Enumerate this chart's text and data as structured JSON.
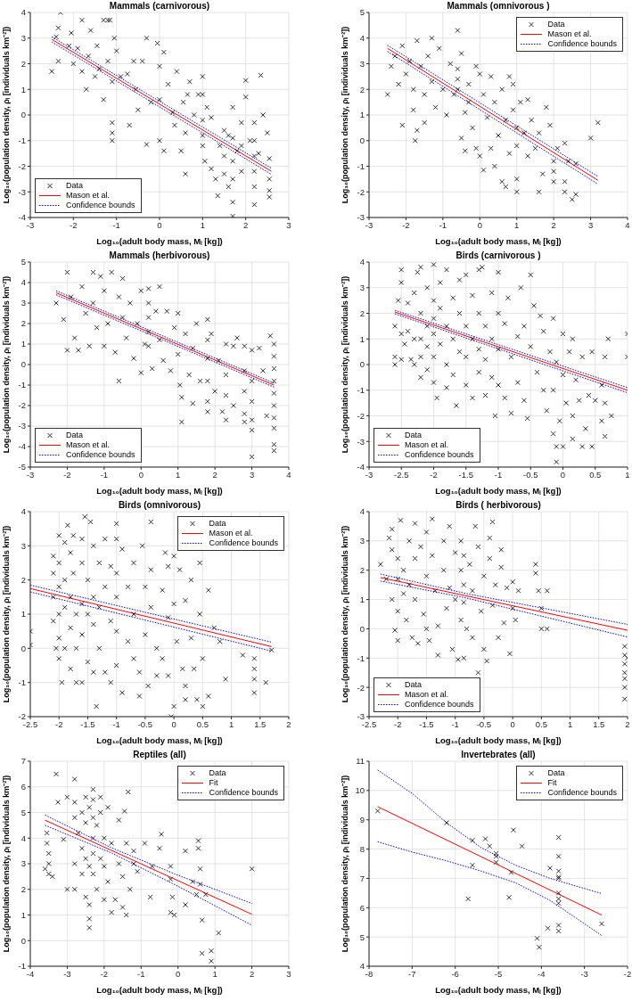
{
  "chart_data": [
    {
      "type": "scatter",
      "title": "Mammals (carnivorous)",
      "xlabel": "Log₁₀(adult body mass, Mᵢ [kg])",
      "ylabel": "Log₁₀(population density, ρᵢ [individuals km⁻²])",
      "xlim": [
        -3,
        3
      ],
      "xticks": [
        -3,
        -2,
        -1,
        0,
        1,
        2,
        3
      ],
      "ylim": [
        -4,
        4
      ],
      "yticks": [
        -4,
        -3,
        -2,
        -1,
        0,
        1,
        2,
        3,
        4
      ],
      "grid": true,
      "legend": "bottom left",
      "series": [
        {
          "name": "Data",
          "type": "scatter",
          "marker": "cross",
          "color": "#000000",
          "x": [
            -2.5,
            -2.4,
            -2.35,
            -2.35,
            -2.3,
            -2.1,
            -2.05,
            -2.0,
            -1.9,
            -1.8,
            -1.8,
            -1.7,
            -1.65,
            -1.6,
            -1.5,
            -1.45,
            -1.4,
            -1.3,
            -1.3,
            -1.2,
            -1.2,
            -1.15,
            -1.1,
            -1.1,
            -1.1,
            -1.1,
            -1.05,
            -1.0,
            -0.9,
            -0.75,
            -0.7,
            -0.6,
            -0.55,
            -0.5,
            -0.4,
            -0.3,
            -0.3,
            -0.2,
            -0.05,
            0,
            0,
            0,
            0.1,
            0.1,
            0.2,
            0.3,
            0.35,
            0.4,
            0.5,
            0.55,
            0.6,
            0.6,
            0.65,
            0.7,
            0.8,
            0.9,
            1.0,
            1.0,
            1.0,
            1.0,
            1.0,
            1.05,
            1.1,
            1.2,
            1.2,
            1.3,
            1.35,
            1.4,
            1.5,
            1.5,
            1.5,
            1.6,
            1.6,
            1.7,
            1.7,
            1.7,
            1.7,
            1.7,
            1.7,
            1.8,
            1.9,
            1.9,
            1.9,
            2.0,
            2.0,
            2.1,
            2.2,
            2.2,
            2.2,
            2.2,
            2.2,
            2.2,
            2.3,
            2.35,
            2.4,
            2.5,
            2.55,
            2.55,
            2.55,
            2.55
          ],
          "values": [
            1.7,
            3.05,
            3.4,
            2.1,
            4.0,
            2.7,
            3.2,
            2.0,
            2.6,
            3.7,
            1.7,
            1.0,
            2.3,
            3.3,
            1.5,
            2.7,
            1.8,
            3.7,
            0.6,
            3.7,
            2.1,
            3.7,
            1.3,
            -0.3,
            -0.7,
            -1.0,
            3.0,
            2.5,
            1.5,
            1.6,
            -0.4,
            2.1,
            1.0,
            0.2,
            2.1,
            3.0,
            -1.15,
            0.5,
            2.8,
            1.9,
            0.6,
            -1.0,
            2.45,
            -1.4,
            1.2,
            0.1,
            -0.4,
            1.7,
            -1.4,
            0.5,
            -2.3,
            -0.7,
            0.8,
            1.3,
            0.0,
            0.8,
            1.5,
            0.8,
            -0.2,
            -0.8,
            -1.2,
            -1.8,
            0.3,
            -0.1,
            -2.1,
            -2.5,
            -3.15,
            -1.2,
            -0.6,
            -1.6,
            -2.3,
            -0.8,
            -2.8,
            0.3,
            -0.9,
            -1.8,
            -2.5,
            -3.4,
            -3.95,
            -1.4,
            -0.3,
            -1.2,
            -2.2,
            0.7,
            1.35,
            -1.0,
            -0.3,
            -1.0,
            -1.6,
            -2.2,
            -2.8,
            -3.5,
            -1.5,
            1.55,
            0.0,
            -0.7,
            -1.7,
            -2.5,
            -2.95,
            -3.2
          ]
        },
        {
          "name": "Mason et al.",
          "type": "line",
          "line_style": "solid",
          "color": "#ff0000",
          "x": [
            -2.5,
            2.6
          ],
          "values": [
            2.95,
            -2.2
          ]
        },
        {
          "name": "Confidence bounds",
          "type": "line",
          "line_style": "dotted",
          "color": "#0000ff",
          "x": [
            -2.5,
            2.6
          ],
          "values": [
            3.05,
            -2.08
          ]
        },
        {
          "type": "line",
          "line_style": "dotted",
          "color": "#0000ff",
          "x": [
            -2.5,
            2.6
          ],
          "values": [
            2.85,
            -2.32
          ]
        }
      ]
    },
    {
      "type": "scatter",
      "title": "Mammals (omnivorous )",
      "xlabel": "Log₁₀(adult body mass, Mᵢ [kg])",
      "ylabel": "Log₁₀(population density, ρᵢ [individuals km⁻²])",
      "xlim": [
        -3,
        4
      ],
      "xticks": [
        -3,
        -2,
        -1,
        0,
        1,
        2,
        3,
        4
      ],
      "ylim": [
        -3,
        5
      ],
      "yticks": [
        -3,
        -2,
        -1,
        0,
        1,
        2,
        3,
        4,
        5
      ],
      "grid": true,
      "legend": "top right",
      "series": [
        {
          "name": "Data",
          "type": "scatter",
          "marker": "cross",
          "color": "#000000",
          "x": [
            -2.5,
            -2.4,
            -2.3,
            -2.2,
            -2.1,
            -2.1,
            -2.0,
            -1.9,
            -1.8,
            -1.8,
            -1.75,
            -1.7,
            -1.7,
            -1.6,
            -1.5,
            -1.5,
            -1.4,
            -1.3,
            -1.3,
            -1.2,
            -1.1,
            -1.0,
            -0.9,
            -0.8,
            -0.7,
            -0.6,
            -0.6,
            -0.6,
            -0.6,
            -0.5,
            -0.5,
            -0.4,
            -0.4,
            -0.3,
            -0.3,
            -0.2,
            -0.1,
            -0.1,
            0,
            0,
            0.1,
            0.1,
            0.2,
            0.3,
            0.3,
            0.4,
            0.4,
            0.5,
            0.6,
            0.6,
            0.7,
            0.7,
            0.8,
            0.8,
            0.9,
            0.9,
            1.0,
            1.0,
            1.0,
            1.0,
            1.1,
            1.2,
            1.3,
            1.3,
            1.4,
            1.5,
            1.6,
            1.6,
            1.7,
            1.8,
            1.9,
            2.0,
            2.0,
            2.0,
            2.1,
            2.3,
            2.3,
            2.3,
            2.4,
            2.5,
            2.6,
            2.6,
            3.0,
            3.2
          ],
          "values": [
            1.8,
            2.9,
            3.3,
            2.2,
            3.7,
            0.6,
            2.6,
            3.1,
            2.0,
            1.2,
            0.0,
            3.9,
            0.4,
            2.9,
            0.7,
            1.8,
            3.3,
            4.0,
            2.3,
            1.3,
            3.6,
            2.0,
            1.0,
            3.0,
            1.8,
            4.3,
            2.8,
            2.4,
            2.0,
            3.4,
            0.1,
            1.1,
            -0.4,
            2.2,
            1.5,
            0.5,
            2.9,
            -0.3,
            2.6,
            -0.6,
            1.8,
            -1.15,
            0.9,
            2.5,
            -0.3,
            1.5,
            -1.0,
            0.2,
            2.0,
            -1.6,
            0.8,
            -1.8,
            2.5,
            -0.5,
            1.2,
            2.2,
            -1.5,
            -2.0,
            -0.2,
            0.5,
            1.5,
            0.3,
            1.6,
            -0.6,
            0.8,
            -0.3,
            0.3,
            -2.0,
            -1.3,
            1.3,
            0.6,
            -0.8,
            -1.2,
            -1.6,
            -0.3,
            -0.1,
            -1.6,
            -2.0,
            -0.8,
            -2.3,
            -0.9,
            -2.1,
            0.1,
            0.7
          ]
        },
        {
          "name": "Mason et al.",
          "type": "line",
          "line_style": "solid",
          "color": "#ff0000",
          "x": [
            -2.5,
            3.2
          ],
          "values": [
            3.6,
            -1.55
          ]
        },
        {
          "name": "Confidence bounds",
          "type": "line",
          "line_style": "dotted",
          "color": "#0000ff",
          "x": [
            -2.5,
            3.2
          ],
          "values": [
            3.72,
            -1.4
          ]
        },
        {
          "type": "line",
          "line_style": "dotted",
          "color": "#0000ff",
          "x": [
            -2.5,
            3.2
          ],
          "values": [
            3.48,
            -1.7
          ]
        }
      ]
    },
    {
      "type": "scatter",
      "title": "Mammals (herbivorous)",
      "xlabel": "Log₁₀(adult body mass, Mᵢ [kg])",
      "ylabel": "Log₁₀(population density, ρᵢ [individuals km⁻²])",
      "xlim": [
        -3,
        4
      ],
      "xticks": [
        -3,
        -2,
        -1,
        0,
        1,
        2,
        3,
        4
      ],
      "ylim": [
        -5,
        5
      ],
      "yticks": [
        -5,
        -4,
        -3,
        -2,
        -1,
        0,
        1,
        2,
        3,
        4,
        5
      ],
      "grid": true,
      "legend": "bottom left",
      "series": [
        {
          "name": "Data",
          "type": "scatter",
          "marker": "cross",
          "color": "#000000",
          "x": [
            -2.3,
            -2.1,
            -2.0,
            -2.0,
            -1.9,
            -1.8,
            -1.7,
            -1.6,
            -1.5,
            -1.4,
            -1.3,
            -1.3,
            -1.2,
            -1.1,
            -1.0,
            -1.0,
            -0.9,
            -0.8,
            -0.7,
            -0.6,
            -0.6,
            -0.5,
            -0.5,
            -0.4,
            -0.3,
            -0.2,
            -0.1,
            0,
            0,
            0.1,
            0.2,
            0.2,
            0.2,
            0.2,
            0.2,
            0.3,
            0.4,
            0.5,
            0.5,
            0.6,
            0.7,
            0.8,
            0.9,
            1.0,
            1.0,
            1.05,
            1.1,
            1.1,
            1.2,
            1.3,
            1.4,
            1.4,
            1.5,
            1.6,
            1.8,
            1.8,
            1.8,
            1.8,
            1.8,
            1.8,
            1.9,
            2.0,
            2.1,
            2.2,
            2.3,
            2.3,
            2.3,
            2.3,
            2.5,
            2.5,
            2.6,
            2.8,
            2.8,
            2.8,
            2.8,
            2.8,
            3.0,
            3.0,
            3.0,
            3.0,
            3.0,
            3.0,
            3.2,
            3.3,
            3.4,
            3.5,
            3.6,
            3.6,
            3.6,
            3.6,
            3.6,
            3.6,
            3.6,
            3.6,
            3.6,
            3.6
          ],
          "values": [
            3.0,
            2.2,
            4.5,
            0.7,
            3.3,
            1.3,
            0.7,
            3.8,
            2.5,
            0.9,
            4.5,
            3.0,
            1.8,
            4.3,
            3.6,
            0.9,
            2.0,
            4.5,
            0.6,
            3.3,
            -0.8,
            4.2,
            2.3,
            1.3,
            3.0,
            0.3,
            2.0,
            3.6,
            -0.4,
            1.0,
            3.7,
            3.0,
            2.3,
            1.6,
            0.9,
            -0.2,
            2.6,
            3.8,
            1.2,
            0.2,
            2.6,
            -0.3,
            1.8,
            2.5,
            0.5,
            -1.0,
            -2.8,
            -1.6,
            1.5,
            -0.5,
            0.8,
            -1.9,
            2.0,
            -0.8,
            2.2,
            1.2,
            0.3,
            -0.8,
            -1.8,
            -2.3,
            1.5,
            -1.3,
            0.2,
            -2.3,
            1.0,
            -0.5,
            -1.5,
            -2.7,
            0.9,
            -2.0,
            1.3,
            0.9,
            -0.3,
            -1.3,
            -2.4,
            -2.8,
            0.7,
            -0.8,
            -1.8,
            -2.7,
            -3.2,
            -4.5,
            0.8,
            -0.3,
            -2.5,
            1.4,
            1.0,
            0.4,
            -0.2,
            -0.8,
            -1.4,
            -2.0,
            -2.6,
            -3.1,
            -3.9,
            -4.2
          ]
        },
        {
          "name": "Mason et al.",
          "type": "line",
          "line_style": "solid",
          "color": "#ff0000",
          "x": [
            -2.3,
            3.6
          ],
          "values": [
            3.5,
            -1.0
          ]
        },
        {
          "name": "Confidence bounds",
          "type": "line",
          "line_style": "dotted",
          "color": "#0000ff",
          "x": [
            -2.3,
            3.6
          ],
          "values": [
            3.6,
            -0.9
          ]
        },
        {
          "type": "line",
          "line_style": "dotted",
          "color": "#0000ff",
          "x": [
            -2.3,
            3.6
          ],
          "values": [
            3.4,
            -1.1
          ]
        }
      ]
    },
    {
      "type": "scatter",
      "title": "Birds (carnivorous )",
      "xlabel": "Log₁₀(adult body mass, Mᵢ [kg])",
      "ylabel": "Log₁₀(population density, ρᵢ [individuals km⁻²])",
      "xlim": [
        -3,
        1
      ],
      "xticks": [
        -3,
        -2.5,
        -2,
        -1.5,
        -1,
        -0.5,
        0,
        0.5,
        1
      ],
      "ylim": [
        -4,
        4
      ],
      "yticks": [
        -4,
        -3,
        -2,
        -1,
        0,
        1,
        2,
        3,
        4
      ],
      "grid": true,
      "legend": "bottom left",
      "series": [
        {
          "name": "Data",
          "type": "scatter",
          "marker": "cross",
          "color": "#000000",
          "x": [
            -2.6,
            -2.6,
            -2.6,
            -2.55,
            -2.5,
            -2.5,
            -2.5,
            -2.5,
            -2.45,
            -2.4,
            -2.4,
            -2.35,
            -2.3,
            -2.3,
            -2.3,
            -2.25,
            -2.2,
            -2.2,
            -2.2,
            -2.2,
            -2.2,
            -2.1,
            -2.1,
            -2.1,
            -2.1,
            -2.0,
            -2.0,
            -2.0,
            -2.0,
            -2.0,
            -2.0,
            -1.95,
            -1.9,
            -1.9,
            -1.9,
            -1.8,
            -1.8,
            -1.8,
            -1.8,
            -1.7,
            -1.7,
            -1.7,
            -1.65,
            -1.6,
            -1.6,
            -1.6,
            -1.5,
            -1.5,
            -1.5,
            -1.5,
            -1.4,
            -1.4,
            -1.4,
            -1.3,
            -1.3,
            -1.3,
            -1.3,
            -1.25,
            -1.2,
            -1.2,
            -1.2,
            -1.1,
            -1.1,
            -1.1,
            -1.05,
            -1.0,
            -1.0,
            -1.0,
            -1.0,
            -0.9,
            -0.9,
            -0.85,
            -0.8,
            -0.8,
            -0.7,
            -0.7,
            -0.65,
            -0.6,
            -0.6,
            -0.55,
            -0.5,
            -0.5,
            -0.45,
            -0.4,
            -0.35,
            -0.3,
            -0.3,
            -0.25,
            -0.2,
            -0.15,
            -0.15,
            -0.15,
            -0.1,
            -0.1,
            -0.1,
            -0.05,
            0,
            0,
            0,
            0.05,
            0.1,
            0.15,
            0.15,
            0.15,
            0.2,
            0.25,
            0.3,
            0.3,
            0.35,
            0.4,
            0.45,
            0.45,
            0.5,
            0.6,
            0.6,
            0.65,
            0.65,
            0.65,
            0.7,
            0.75,
            1.0,
            1.0
          ],
          "values": [
            1.5,
            0.3,
            0.0,
            2.5,
            3.7,
            3.2,
            1.2,
            0.2,
            0.8,
            2.4,
            1.3,
            0.2,
            0.0,
            1.0,
            2.8,
            3.6,
            3.8,
            2.0,
            1.0,
            0.3,
            -0.5,
            3.0,
            1.5,
            0.7,
            -0.2,
            3.9,
            2.5,
            1.8,
            1.2,
            0.3,
            -0.7,
            -1.3,
            3.2,
            2.2,
            0.8,
            3.7,
            1.5,
            0.0,
            -0.9,
            2.6,
            1.0,
            -0.4,
            -1.6,
            3.3,
            2.0,
            0.5,
            3.5,
            1.5,
            0.3,
            -0.8,
            2.7,
            1.0,
            -1.3,
            3.7,
            2.0,
            0.6,
            -0.3,
            3.8,
            1.5,
            0.2,
            -1.2,
            2.8,
            1.0,
            -0.5,
            -2.0,
            3.6,
            2.0,
            0.6,
            -0.8,
            1.6,
            -1.3,
            2.6,
            0.3,
            -1.9,
            1.1,
            -0.7,
            3.0,
            1.5,
            -1.4,
            -2.1,
            3.5,
            0.7,
            2.3,
            -0.3,
            1.9,
            1.3,
            -1.0,
            -1.8,
            0.5,
            1.8,
            -1.0,
            -2.7,
            -3.2,
            -3.8,
            0.1,
            -2.2,
            1.2,
            -0.4,
            -3.2,
            -1.5,
            0.5,
            -2.0,
            -2.9,
            1.0,
            -0.6,
            -1.4,
            0.3,
            -3.2,
            -2.5,
            -1.2,
            -3.2,
            0.5,
            -1.4,
            -0.8,
            -2.2,
            -1.5,
            0.3,
            -2.8,
            1.0,
            -2.0,
            1.2,
            0.3
          ]
        },
        {
          "name": "Mason et al.",
          "type": "line",
          "line_style": "solid",
          "color": "#ff0000",
          "x": [
            -2.6,
            1.0
          ],
          "values": [
            2.05,
            -1.0
          ]
        },
        {
          "name": "Confidence bounds",
          "type": "line",
          "line_style": "dotted",
          "color": "#0000ff",
          "x": [
            -2.6,
            1.0
          ],
          "values": [
            2.12,
            -0.9
          ]
        },
        {
          "type": "line",
          "line_style": "dotted",
          "color": "#0000ff",
          "x": [
            -2.6,
            1.0
          ],
          "values": [
            1.98,
            -1.1
          ]
        }
      ]
    },
    {
      "type": "scatter",
      "title": "Birds (omnivorous)",
      "xlabel": "Log₁₀(adult body mass, Mᵢ [kg])",
      "ylabel": "Log₁₀(population density, ρᵢ [individuals km⁻²])",
      "xlim": [
        -2.5,
        2
      ],
      "xticks": [
        -2.5,
        -2,
        -1.5,
        -1,
        -0.5,
        0,
        0.5,
        1,
        1.5,
        2
      ],
      "ylim": [
        -2,
        4
      ],
      "yticks": [
        -2,
        -1,
        0,
        1,
        2,
        3,
        4
      ],
      "grid": true,
      "legend": "top right",
      "series": [
        {
          "name": "Data",
          "type": "scatter",
          "marker": "cross",
          "color": "#000000",
          "x": [
            -2.5,
            -2.5,
            -2.1,
            -2.1,
            -2.1,
            -2.1,
            -2.05,
            -2.0,
            -2.0,
            -2.0,
            -2.0,
            -2.0,
            -2.0,
            -1.95,
            -1.9,
            -1.9,
            -1.9,
            -1.9,
            -1.85,
            -1.8,
            -1.8,
            -1.8,
            -1.8,
            -1.75,
            -1.75,
            -1.7,
            -1.7,
            -1.7,
            -1.6,
            -1.6,
            -1.6,
            -1.6,
            -1.6,
            -1.55,
            -1.5,
            -1.5,
            -1.5,
            -1.45,
            -1.4,
            -1.4,
            -1.4,
            -1.4,
            -1.35,
            -1.3,
            -1.3,
            -1.3,
            -1.2,
            -1.2,
            -1.2,
            -1.1,
            -1.1,
            -1.1,
            -1.0,
            -1.0,
            -1.0,
            -1.0,
            -1.0,
            -1.0,
            -0.9,
            -0.9,
            -0.8,
            -0.8,
            -0.7,
            -0.7,
            -0.7,
            -0.6,
            -0.6,
            -0.55,
            -0.5,
            -0.5,
            -0.45,
            -0.4,
            -0.4,
            -0.4,
            -0.3,
            -0.3,
            -0.2,
            -0.2,
            -0.15,
            -0.1,
            -0.1,
            -0.1,
            -0.05,
            0,
            0,
            0,
            0.05,
            0.1,
            0.15,
            0.2,
            0.2,
            0.2,
            0.3,
            0.3,
            0.35,
            0.4,
            0.45,
            0.45,
            0.5,
            0.5,
            0.6,
            0.6,
            0.7,
            0.8,
            0.9,
            1.2,
            1.4,
            1.4,
            1.4,
            1.4,
            1.6,
            1.7
          ],
          "values": [
            0.5,
            0.1,
            2.7,
            2.2,
            1.5,
            0.8,
            0.0,
            3.3,
            2.5,
            1.8,
            1.0,
            0.3,
            -0.3,
            -1.0,
            3.1,
            2.0,
            1.2,
            0.0,
            3.6,
            2.8,
            1.5,
            0.6,
            -0.6,
            3.3,
            2.2,
            1.0,
            0.0,
            -1.0,
            3.2,
            2.5,
            1.3,
            0.4,
            -1.0,
            3.85,
            2.0,
            1.0,
            -0.4,
            3.7,
            3.0,
            1.5,
            0.7,
            -0.7,
            -1.7,
            2.5,
            1.2,
            0.0,
            3.2,
            1.8,
            -0.7,
            2.4,
            0.8,
            -1.0,
            3.65,
            3.2,
            2.2,
            1.5,
            0.5,
            -0.5,
            2.9,
            -1.3,
            1.8,
            0.2,
            2.5,
            1.0,
            -0.3,
            -0.7,
            -1.4,
            3.0,
            1.8,
            0.4,
            -1.1,
            3.7,
            2.3,
            1.2,
            0.0,
            -0.8,
            1.7,
            -0.3,
            2.8,
            2.4,
            0.9,
            -0.8,
            -2.0,
            2.7,
            1.3,
            -1.7,
            0.2,
            2.3,
            -0.6,
            1.4,
            -1.1,
            -1.5,
            0.3,
            2.0,
            -0.6,
            -1.5,
            2.5,
            1.0,
            -0.3,
            -1.7,
            1.7,
            -1.4,
            0.6,
            0.2,
            -0.9,
            -0.2,
            -0.3,
            -0.6,
            -0.9,
            -1.3,
            -1.0,
            -0.05
          ]
        },
        {
          "name": "Mason et al.",
          "type": "line",
          "line_style": "solid",
          "color": "#ff0000",
          "x": [
            -2.5,
            1.7
          ],
          "values": [
            1.75,
            0.05
          ]
        },
        {
          "name": "Confidence bounds",
          "type": "line",
          "line_style": "dotted",
          "color": "#0000ff",
          "x": [
            -2.5,
            1.7
          ],
          "values": [
            1.85,
            0.18
          ]
        },
        {
          "type": "line",
          "line_style": "dotted",
          "color": "#0000ff",
          "x": [
            -2.5,
            1.7
          ],
          "values": [
            1.65,
            -0.08
          ]
        }
      ]
    },
    {
      "type": "scatter",
      "title": "Birds ( herbivorous)",
      "xlabel": "Log₁₀(adult body mass, Mᵢ [kg])",
      "ylabel": "Log₁₀(population density, ρᵢ [individuals km⁻²])",
      "xlim": [
        -2.5,
        2
      ],
      "xticks": [
        -2.5,
        -2,
        -1.5,
        -1,
        -0.5,
        0,
        0.5,
        1,
        1.5,
        2
      ],
      "ylim": [
        -3,
        4
      ],
      "yticks": [
        -3,
        -2,
        -1,
        0,
        1,
        2,
        3,
        4
      ],
      "grid": true,
      "legend": "bottom left",
      "series": [
        {
          "name": "Data",
          "type": "scatter",
          "marker": "cross",
          "color": "#000000",
          "x": [
            -2.3,
            -2.2,
            -2.15,
            -2.1,
            -2.1,
            -2.1,
            -2.05,
            -2.0,
            -2.0,
            -2.0,
            -2.0,
            -1.95,
            -1.9,
            -1.9,
            -1.85,
            -1.8,
            -1.8,
            -1.75,
            -1.7,
            -1.7,
            -1.7,
            -1.65,
            -1.6,
            -1.55,
            -1.5,
            -1.5,
            -1.5,
            -1.45,
            -1.4,
            -1.4,
            -1.35,
            -1.3,
            -1.3,
            -1.2,
            -1.2,
            -1.15,
            -1.1,
            -1.1,
            -1.05,
            -1.0,
            -1.0,
            -0.95,
            -0.9,
            -0.9,
            -0.9,
            -0.85,
            -0.85,
            -0.85,
            -0.85,
            -0.8,
            -0.75,
            -0.7,
            -0.7,
            -0.65,
            -0.6,
            -0.6,
            -0.55,
            -0.5,
            -0.5,
            -0.45,
            -0.4,
            -0.4,
            -0.35,
            -0.35,
            -0.3,
            -0.25,
            -0.2,
            -0.2,
            -0.15,
            -0.1,
            -0.05,
            0,
            0,
            0.05,
            0.1,
            0.4,
            0.4,
            0.45,
            0.5,
            0.5,
            0.6,
            0.6,
            1.95,
            1.95,
            1.95,
            1.95,
            1.95,
            1.95,
            1.95,
            2.0
          ],
          "values": [
            2.2,
            1.7,
            3.1,
            3.4,
            2.7,
            1.0,
            -0.05,
            2.4,
            1.7,
            0.6,
            -0.4,
            3.7,
            2.0,
            1.2,
            0.3,
            3.0,
            1.5,
            -0.3,
            3.6,
            2.4,
            1.0,
            -0.5,
            2.8,
            0.5,
            3.3,
            1.8,
            0.0,
            -0.4,
            3.75,
            2.5,
            1.3,
            0.1,
            -0.9,
            3.0,
            2.0,
            0.7,
            3.5,
            1.4,
            -0.7,
            2.6,
            1.0,
            -1.05,
            3.0,
            2.0,
            0.3,
            -1.0,
            2.5,
            1.5,
            0.9,
            0.0,
            2.2,
            1.3,
            -0.3,
            3.5,
            -1.5,
            2.8,
            0.6,
            1.8,
            -0.7,
            -1.1,
            3.1,
            2.4,
            3.65,
            0.8,
            1.5,
            -0.3,
            2.7,
            2.1,
            0.2,
            1.4,
            -0.85,
            1.6,
            0.7,
            0.3,
            1.3,
            2.2,
            1.9,
            1.3,
            0.7,
            0.0,
            1.3,
            0.0,
            -0.6,
            -0.9,
            -1.2,
            -1.5,
            -1.7,
            -2.0,
            -2.4,
            -1.0
          ]
        },
        {
          "name": "Mason et al.",
          "type": "line",
          "line_style": "solid",
          "color": "#ff0000",
          "x": [
            -2.3,
            2.0
          ],
          "values": [
            1.75,
            -0.05
          ]
        },
        {
          "name": "Confidence bounds",
          "type": "line",
          "line_style": "dotted",
          "color": "#0000ff",
          "x": [
            -2.3,
            -0.8,
            2.0
          ],
          "values": [
            1.87,
            1.2,
            0.15
          ]
        },
        {
          "type": "line",
          "line_style": "dotted",
          "color": "#0000ff",
          "x": [
            -2.3,
            -0.8,
            2.0
          ],
          "values": [
            1.63,
            1.05,
            -0.28
          ]
        }
      ]
    },
    {
      "type": "scatter",
      "title": "Reptiles (all)",
      "xlabel": "Log₁₀(adult body mass, Mᵢ [kg])",
      "ylabel": "Log₁₀(population density, ρᵢ [individuals km⁻²])",
      "xlim": [
        -4,
        3
      ],
      "xticks": [
        -4,
        -3,
        -2,
        -1,
        0,
        1,
        2,
        3
      ],
      "ylim": [
        -1,
        7
      ],
      "yticks": [
        -1,
        0,
        1,
        2,
        3,
        4,
        5,
        6,
        7
      ],
      "grid": true,
      "legend": "top right",
      "series": [
        {
          "name": "Data",
          "type": "scatter",
          "marker": "cross",
          "color": "#000000",
          "x": [
            -3.6,
            -3.55,
            -3.55,
            -3.5,
            -3.5,
            -3.5,
            -3.4,
            -3.3,
            -3.25,
            -3.1,
            -3.0,
            -3.0,
            -2.8,
            -2.8,
            -2.8,
            -2.8,
            -2.8,
            -2.7,
            -2.6,
            -2.6,
            -2.6,
            -2.5,
            -2.5,
            -2.5,
            -2.5,
            -2.4,
            -2.4,
            -2.4,
            -2.4,
            -2.4,
            -2.3,
            -2.3,
            -2.3,
            -2.3,
            -2.3,
            -2.3,
            -2.2,
            -2.2,
            -2.1,
            -2.1,
            -2.1,
            -2.0,
            -2.0,
            -2.0,
            -1.9,
            -1.9,
            -1.8,
            -1.8,
            -1.7,
            -1.6,
            -1.6,
            -1.5,
            -1.5,
            -1.45,
            -1.4,
            -1.4,
            -1.35,
            -1.3,
            -1.2,
            -1.2,
            -1.1,
            -0.9,
            -0.75,
            -0.7,
            -0.5,
            -0.45,
            -0.2,
            -0.2,
            -0.2,
            -0.15,
            -0.1,
            0.2,
            0.2,
            0.4,
            0.5,
            0.55,
            0.55,
            0.6,
            0.6,
            0.65,
            0.65,
            0.75,
            0.9,
            0.9,
            1.1,
            2.0
          ],
          "values": [
            2.8,
            4.2,
            3.8,
            3.4,
            3.0,
            2.6,
            2.5,
            6.5,
            5.4,
            3.95,
            2.0,
            5.6,
            6.3,
            5.4,
            4.8,
            3.0,
            2.0,
            4.2,
            5.0,
            3.6,
            2.6,
            5.6,
            4.6,
            3.2,
            1.7,
            5.2,
            2.9,
            1.4,
            0.85,
            0.5,
            5.9,
            5.5,
            4.8,
            4.0,
            3.4,
            2.6,
            4.5,
            2.0,
            5.6,
            5.0,
            3.2,
            4.0,
            2.9,
            1.6,
            5.2,
            2.3,
            1.1,
            3.8,
            1.6,
            3.0,
            4.7,
            1.3,
            2.5,
            5.05,
            3.8,
            1.0,
            5.8,
            2.0,
            3.5,
            3.0,
            2.7,
            3.8,
            1.7,
            2.9,
            3.6,
            4.15,
            2.9,
            2.4,
            1.1,
            1.7,
            1.0,
            3.5,
            1.4,
            2.3,
            1.8,
            3.9,
            3.6,
            2.8,
            2.2,
            0.8,
            -0.5,
            1.8,
            -0.4,
            -0.8,
            0.3,
            2.8
          ]
        },
        {
          "name": "Fit",
          "type": "line",
          "line_style": "solid",
          "color": "#ff0000",
          "x": [
            -3.6,
            2.0
          ],
          "values": [
            4.7,
            1.03
          ]
        },
        {
          "name": "Confidence bounds",
          "type": "line",
          "line_style": "dotted",
          "color": "#0000ff",
          "x": [
            -3.6,
            -1.8,
            0,
            2.0
          ],
          "values": [
            4.9,
            3.62,
            2.55,
            1.45
          ]
        },
        {
          "type": "line",
          "line_style": "dotted",
          "color": "#0000ff",
          "x": [
            -3.6,
            -1.8,
            0,
            2.0
          ],
          "values": [
            4.5,
            3.42,
            2.12,
            0.6
          ]
        }
      ]
    },
    {
      "type": "scatter",
      "title": "Invertebrates (all)",
      "xlabel": "Log₁₀(adult body mass, Mᵢ [kg])",
      "ylabel": "Log₁₀(population density, ρᵢ [individuals km⁻²])",
      "xlim": [
        -8,
        -2
      ],
      "xticks": [
        -8,
        -7,
        -6,
        -5,
        -4,
        -3,
        -2
      ],
      "ylim": [
        4,
        11
      ],
      "yticks": [
        4,
        5,
        6,
        7,
        8,
        9,
        10,
        11
      ],
      "grid": true,
      "legend": "top right",
      "series": [
        {
          "name": "Data",
          "type": "scatter",
          "marker": "cross",
          "color": "#000000",
          "x": [
            -7.8,
            -6.2,
            -5.7,
            -5.6,
            -5.6,
            -5.3,
            -5.2,
            -5.05,
            -5.05,
            -5.05,
            -4.75,
            -4.7,
            -4.65,
            -4.45,
            -4.1,
            -4.05,
            -3.85,
            -3.8,
            -3.6,
            -3.6,
            -3.6,
            -3.6,
            -3.6,
            -3.6,
            -3.6,
            -3.6,
            -3.6,
            -3.6,
            -2.6
          ],
          "values": [
            9.3,
            8.9,
            6.3,
            8.3,
            7.45,
            8.35,
            8.1,
            7.85,
            7.75,
            7.55,
            6.35,
            7.2,
            8.65,
            8.1,
            4.95,
            4.65,
            5.3,
            7.35,
            8.4,
            7.75,
            7.25,
            7.05,
            7.0,
            6.5,
            6.3,
            6.15,
            5.4,
            5.2,
            5.45
          ]
        },
        {
          "name": "Fit",
          "type": "line",
          "line_style": "solid",
          "color": "#ff0000",
          "x": [
            -7.8,
            -2.6
          ],
          "values": [
            9.45,
            5.75
          ]
        },
        {
          "name": "Confidence bounds",
          "type": "line",
          "line_style": "dotted",
          "color": "#0000ff",
          "x": [
            -7.8,
            -7,
            -6.2,
            -5.4,
            -4.6,
            -3.8,
            -2.6
          ],
          "values": [
            10.7,
            9.9,
            8.9,
            8.05,
            7.45,
            7.0,
            6.48
          ]
        },
        {
          "type": "line",
          "line_style": "dotted",
          "color": "#0000ff",
          "x": [
            -7.8,
            -7,
            -6.2,
            -5.4,
            -4.6,
            -3.8,
            -2.6
          ],
          "values": [
            8.25,
            7.9,
            7.6,
            7.25,
            6.85,
            6.25,
            5.05
          ]
        }
      ]
    }
  ]
}
